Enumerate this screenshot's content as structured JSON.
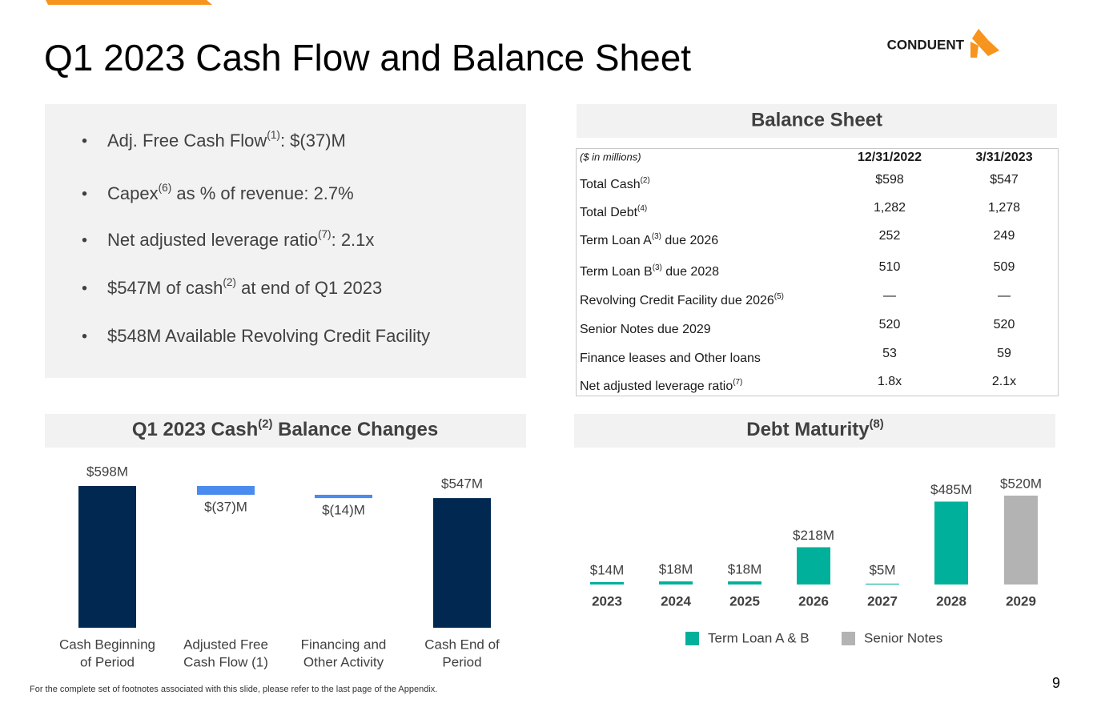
{
  "title": "Q1 2023 Cash Flow and Balance Sheet",
  "logo": "CONDUENT",
  "bullets": [
    {
      "text": "Adj. Free Cash Flow",
      "sup": "(1)",
      "after": ": $(37)M"
    },
    {
      "text": "Capex",
      "sup": "(6)",
      "after": " as % of revenue: 2.7%"
    },
    {
      "text": "Net adjusted leverage ratio",
      "sup": "(7)",
      "after": ": 2.1x"
    },
    {
      "text": "$547M of cash",
      "sup": "(2)",
      "after": " at end of Q1 2023"
    },
    {
      "text": "$548M Available Revolving Credit Facility"
    }
  ],
  "balance_sheet": {
    "title": "Balance Sheet",
    "header": [
      "($ in millions)",
      "12/31/2022",
      "3/31/2023"
    ],
    "rows": [
      {
        "text": "Total Cash",
        "sup": "(2)",
        "values": [
          "$598",
          "$547"
        ]
      },
      {
        "text": "Total Debt",
        "sup": "(4)",
        "values": [
          "1,282",
          "1,278"
        ]
      },
      {
        "text": "Term Loan A",
        "sup": "(3)",
        "after": " due 2026",
        "values": [
          "252",
          "249"
        ]
      },
      {
        "text": "Term Loan B",
        "sup": "(3)",
        "after": " due 2028",
        "values": [
          "510",
          "509"
        ]
      },
      {
        "text": "Revolving Credit Facility due 2026",
        "sup": "(5)",
        "values": [
          "—",
          "—"
        ]
      },
      {
        "text": "Senior Notes due 2029",
        "values": [
          "520",
          "520"
        ]
      },
      {
        "text": "Finance leases and Other loans",
        "values": [
          "53",
          "59"
        ]
      },
      {
        "text": "Net adjusted leverage ratio",
        "sup": "(7)",
        "values": [
          "1.8x",
          "2.1x"
        ]
      }
    ]
  },
  "chart_data": [
    {
      "type": "waterfall",
      "title": {
        "text": "Q1 2023 Cash",
        "sup": "(2)",
        "after": " Balance Changes"
      },
      "categories": [
        [
          "Cash Beginning",
          "of  Period"
        ],
        [
          "Adjusted Free",
          "Cash Flow (1)"
        ],
        [
          "Financing and",
          "Other Activity"
        ],
        [
          "Cash End of",
          "Period"
        ]
      ],
      "values": [
        598,
        -37,
        -14,
        547
      ],
      "value_labels": [
        "$598M",
        "$(37)M",
        "$(14)M",
        "$547M"
      ],
      "measure": [
        "total",
        "relative",
        "relative",
        "total"
      ],
      "colors": [
        "#002850",
        "#4a8bef",
        "#4a8bef",
        "#002850"
      ]
    },
    {
      "type": "stacked_bar",
      "title": {
        "text": "Debt Maturity",
        "sup": "(8)"
      },
      "categories": [
        "2023",
        "2024",
        "2025",
        "2026",
        "2027",
        "2028",
        "2029"
      ],
      "series": [
        {
          "name": "Term Loan A & B",
          "color": "#00b09b",
          "values": [
            14,
            18,
            18,
            218,
            5,
            485,
            null
          ],
          "value_labels": [
            "$14M",
            "$18M",
            "$18M",
            "$218M",
            "$5M",
            "$485M",
            null
          ]
        },
        {
          "name": "Senior Notes",
          "color": "#b3b3b3",
          "values": [
            null,
            null,
            null,
            null,
            null,
            null,
            520
          ],
          "value_labels": [
            null,
            null,
            null,
            null,
            null,
            null,
            "$520M"
          ]
        }
      ],
      "legend": "bottom"
    }
  ],
  "footnote": "For the complete set of footnotes associated with this slide, please refer to the last page of the Appendix.",
  "page_number": "9"
}
